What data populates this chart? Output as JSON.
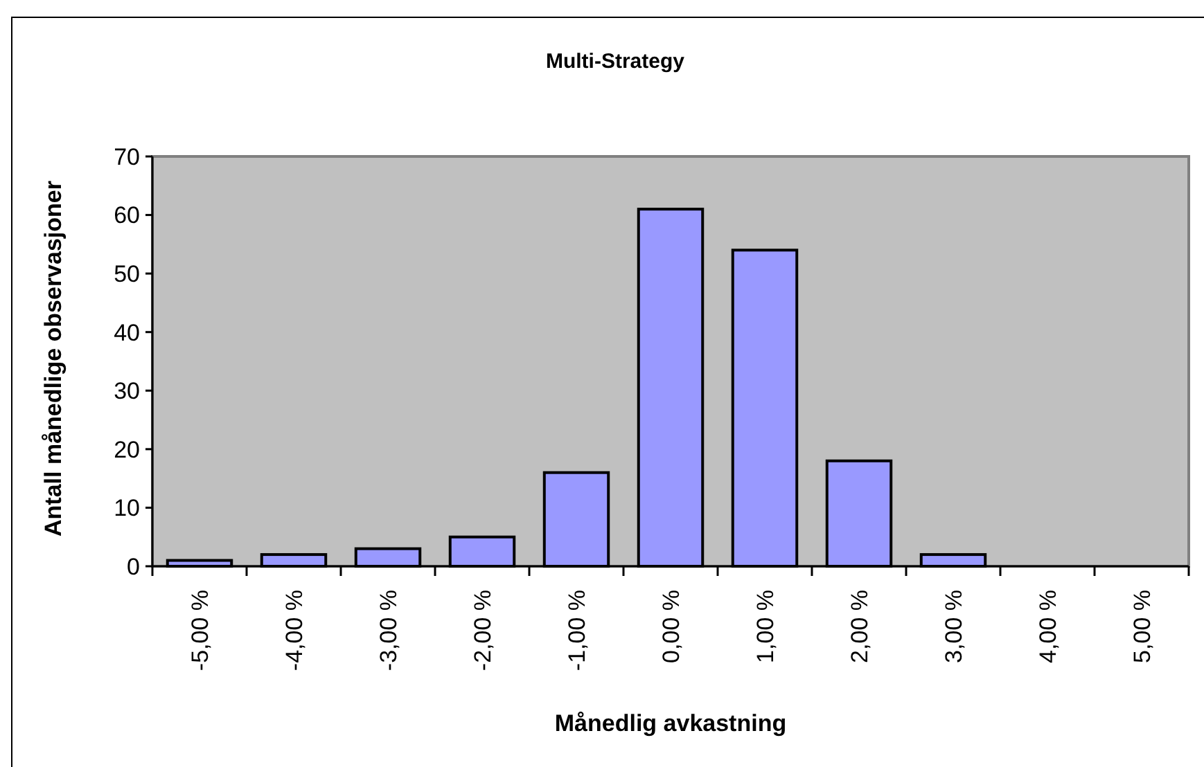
{
  "chart_data": {
    "type": "bar",
    "title": "Multi-Strategy",
    "xlabel": "Månedlig avkastning",
    "ylabel": "Antall månedlige observasjoner",
    "categories": [
      "-5,00 %",
      "-4,00 %",
      "-3,00 %",
      "-2,00 %",
      "-1,00 %",
      "0,00 %",
      "1,00 %",
      "2,00 %",
      "3,00 %",
      "4,00 %",
      "5,00 %"
    ],
    "values": [
      1,
      2,
      3,
      5,
      16,
      61,
      54,
      18,
      2,
      0,
      0
    ],
    "color": "#9999ff",
    "ylim": [
      0,
      70
    ],
    "yticks": [
      0,
      10,
      20,
      30,
      40,
      50,
      60,
      70
    ],
    "grid": false
  }
}
